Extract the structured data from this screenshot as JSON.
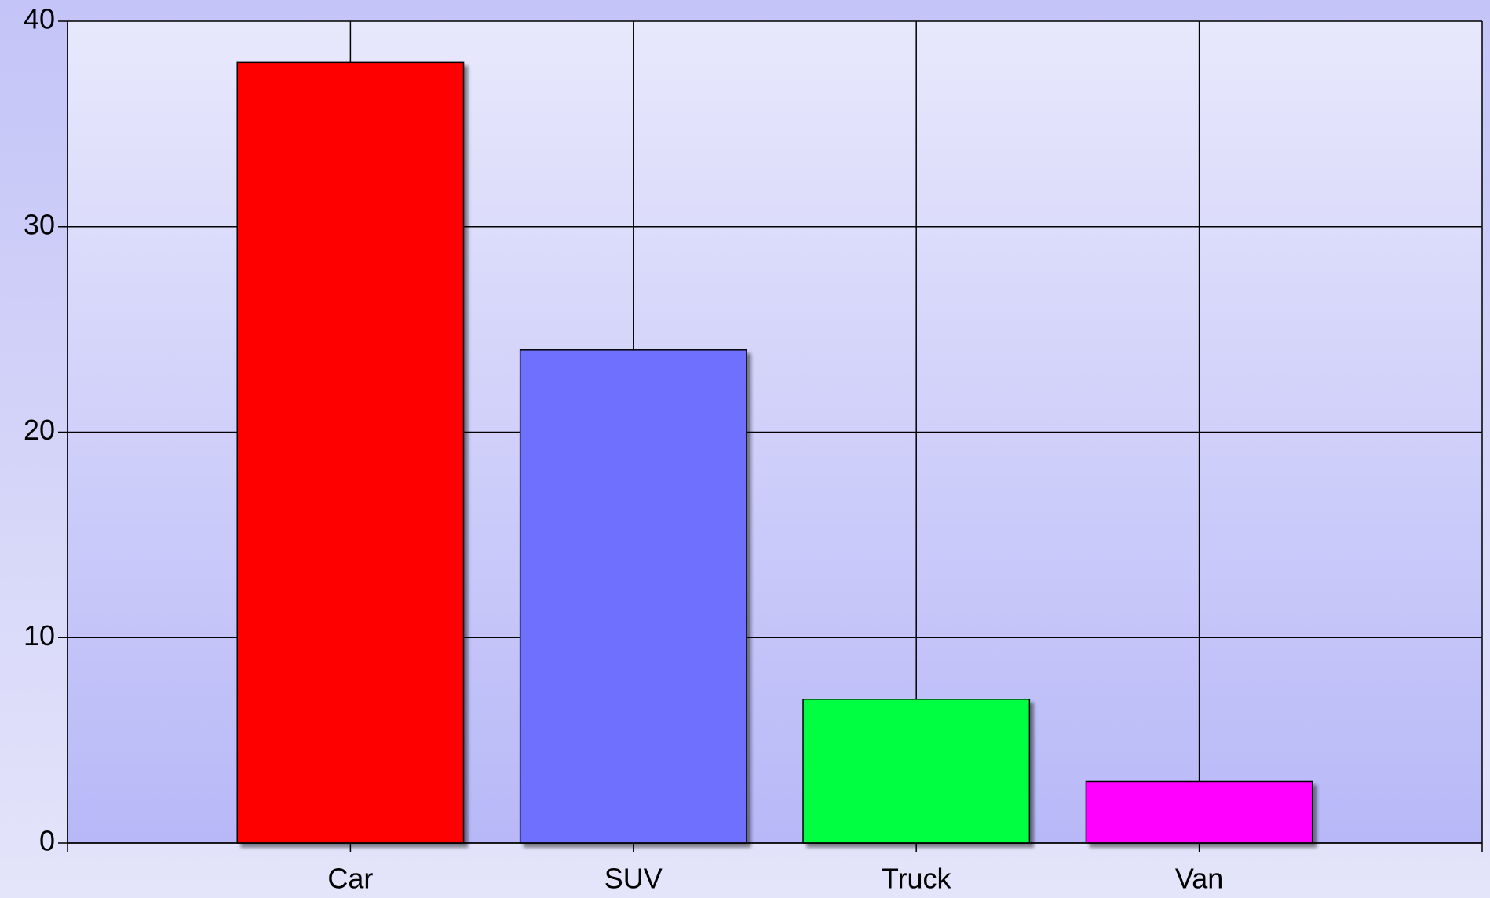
{
  "chart_data": {
    "type": "bar",
    "categories": [
      "Car",
      "SUV",
      "Truck",
      "Van"
    ],
    "values": [
      38,
      24,
      7,
      3
    ],
    "colors": [
      "#ff0000",
      "#7070ff",
      "#00ff40",
      "#ff00ff"
    ],
    "ylim": [
      0,
      40
    ],
    "yticks": [
      0,
      10,
      20,
      30,
      40
    ],
    "grid": true
  }
}
